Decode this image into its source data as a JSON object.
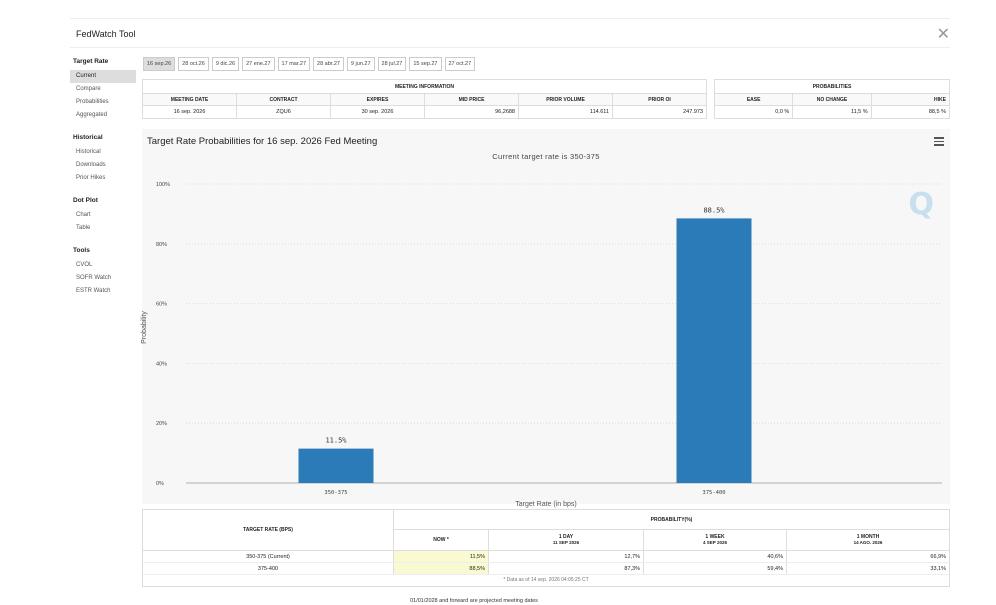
{
  "app": {
    "title": "FedWatch Tool",
    "close_icon": "close-icon"
  },
  "sidebar": [
    {
      "head": "Target Rate",
      "items": [
        "Current",
        "Compare",
        "Probabilities",
        "Aggregated"
      ],
      "active": 0
    },
    {
      "head": "Historical",
      "items": [
        "Historical",
        "Downloads",
        "Prior Hikes"
      ],
      "active": -1
    },
    {
      "head": "Dot Plot",
      "items": [
        "Chart",
        "Table"
      ],
      "active": -1
    },
    {
      "head": "Tools",
      "items": [
        "CVOL",
        "SOFR Watch",
        "ESTR Watch"
      ],
      "active": -1
    }
  ],
  "tabs": [
    "16 sep.26",
    "28 oct.26",
    "9 dic.26",
    "27 ene.27",
    "17 mar.27",
    "28 abr.27",
    "9 jun.27",
    "28 jul.27",
    "15 sep.27",
    "27 oct.27"
  ],
  "active_tab": 0,
  "meeting_info": {
    "title": "MEETING INFORMATION",
    "headers": [
      "MEETING DATE",
      "CONTRACT",
      "EXPIRES",
      "MID PRICE",
      "PRIOR VOLUME",
      "PRIOR OI"
    ],
    "values": [
      "16 sep. 2026",
      "ZQU6",
      "30 sep. 2026",
      "96,2688",
      "114.611",
      "247.973"
    ]
  },
  "probabilities": {
    "title": "PROBABILITIES",
    "headers": [
      "EASE",
      "NO CHANGE",
      "HIKE"
    ],
    "values": [
      "0,0 %",
      "11,5 %",
      "88,5 %"
    ]
  },
  "chart": {
    "title": "Target Rate Probabilities for 16 sep. 2026 Fed Meeting",
    "subtitle": "Current target rate is 350-375",
    "menu_icon": "hamburger-menu-icon",
    "watermark": "Q"
  },
  "chart_data": {
    "type": "bar",
    "categories": [
      "350-375",
      "375-400"
    ],
    "values": [
      11.5,
      88.5
    ],
    "data_labels": [
      "11.5%",
      "88.5%"
    ],
    "xlabel": "Target Rate (in bps)",
    "ylabel": "Probability",
    "ylim": [
      0,
      100
    ],
    "yticks": [
      "0%",
      "20%",
      "40%",
      "60%",
      "80%",
      "100%"
    ],
    "bar_color": "#2b7bb9",
    "grid": true
  },
  "bottom_table": {
    "target_header": "TARGET RATE (BPS)",
    "prob_header": "PROBABILITY(%)",
    "col_now": "NOW *",
    "col_day": "1 DAY",
    "col_day_date": "11 SEP 2026",
    "col_week": "1 WEEK",
    "col_week_date": "4 SEP 2026",
    "col_month": "1 MONTH",
    "col_month_date": "14 AGO. 2026",
    "rows": [
      {
        "target": "350-375 (Current)",
        "now": "11,5%",
        "day": "12,7%",
        "week": "40,6%",
        "month": "66,9%"
      },
      {
        "target": "375-400",
        "now": "88,5%",
        "day": "87,3%",
        "week": "59,4%",
        "month": "33,1%"
      }
    ],
    "footnote": "* Data as of 14 sep. 2026 04:05:25 CT",
    "projected_note": "01/01/2028 and forward are projected meeting dates"
  }
}
